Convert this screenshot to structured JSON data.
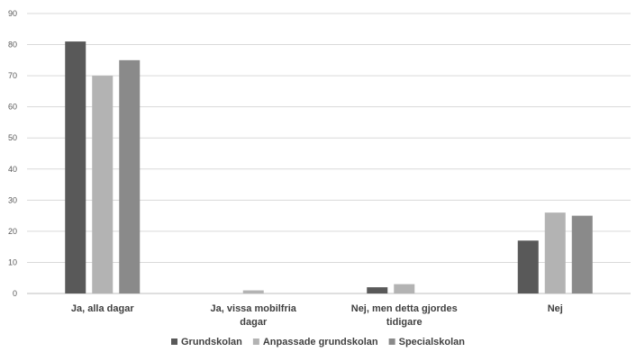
{
  "chart_data": {
    "type": "bar",
    "categories": [
      [
        "Ja, alla dagar"
      ],
      [
        "Ja, vissa mobilfria",
        "dagar"
      ],
      [
        "Nej, men detta gjordes",
        "tidigare"
      ],
      [
        "Nej"
      ]
    ],
    "series": [
      {
        "name": "Grundskolan",
        "color": "#595959",
        "values": [
          81,
          0,
          2,
          17
        ]
      },
      {
        "name": "Anpassade grundskolan",
        "color": "#b3b3b3",
        "values": [
          70,
          1,
          3,
          26
        ]
      },
      {
        "name": "Specialskolan",
        "color": "#8a8a8a",
        "values": [
          75,
          0,
          0,
          25
        ]
      }
    ],
    "ylim": [
      0,
      90
    ],
    "yticks": [
      0,
      10,
      20,
      30,
      40,
      50,
      60,
      70,
      80,
      90
    ],
    "grid": true,
    "legend": "bottom",
    "title": "",
    "xlabel": "",
    "ylabel": ""
  }
}
